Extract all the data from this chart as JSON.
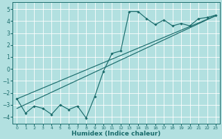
{
  "xlabel": "Humidex (Indice chaleur)",
  "bg_color": "#b2e0e0",
  "grid_color": "#ffffff",
  "line_color": "#1a6b6b",
  "xlim": [
    -0.5,
    23.5
  ],
  "ylim": [
    -4.6,
    5.6
  ],
  "xticks": [
    0,
    1,
    2,
    3,
    4,
    5,
    6,
    7,
    8,
    9,
    10,
    11,
    12,
    13,
    14,
    15,
    16,
    17,
    18,
    19,
    20,
    21,
    22,
    23
  ],
  "yticks": [
    -4,
    -3,
    -2,
    -1,
    0,
    1,
    2,
    3,
    4,
    5
  ],
  "data_x": [
    0,
    1,
    2,
    3,
    4,
    5,
    6,
    7,
    8,
    9,
    10,
    11,
    12,
    13,
    14,
    15,
    16,
    17,
    18,
    19,
    20,
    21,
    22,
    23
  ],
  "data_y": [
    -2.5,
    -3.7,
    -3.1,
    -3.3,
    -3.8,
    -3.0,
    -3.4,
    -3.1,
    -4.1,
    -2.3,
    -0.2,
    1.3,
    1.5,
    4.8,
    4.8,
    4.2,
    3.7,
    4.1,
    3.6,
    3.8,
    3.6,
    4.2,
    4.3,
    4.5
  ],
  "reg_line1": [
    -3.3,
    4.45
  ],
  "reg_line2": [
    -2.5,
    4.45
  ],
  "xlabel_fontsize": 6.5,
  "tick_fontsize_x": 4.5,
  "tick_fontsize_y": 5.5
}
